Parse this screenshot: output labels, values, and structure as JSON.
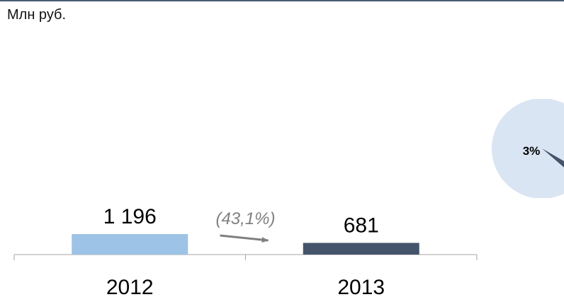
{
  "unit_label": "Млн руб.",
  "colors": {
    "bar_2012": "#9dc3e6",
    "bar_2013": "#44546a",
    "axis": "#a6a6a6",
    "change_text": "#808080",
    "arrow": "#808080",
    "pie_major": "#dae5f3",
    "pie_minor": "#44546a"
  },
  "chart_data": [
    {
      "type": "bar",
      "categories": [
        "2012",
        "2013"
      ],
      "values": [
        1196,
        681
      ],
      "value_labels": [
        "1 196",
        "681"
      ],
      "change_label": "(43,1%)",
      "xlabel": "",
      "ylabel": "",
      "grid": false
    },
    {
      "type": "pie",
      "values": [
        3,
        97
      ],
      "labels": [
        "3%",
        ""
      ],
      "visible": "partial, cut at right edge"
    }
  ]
}
